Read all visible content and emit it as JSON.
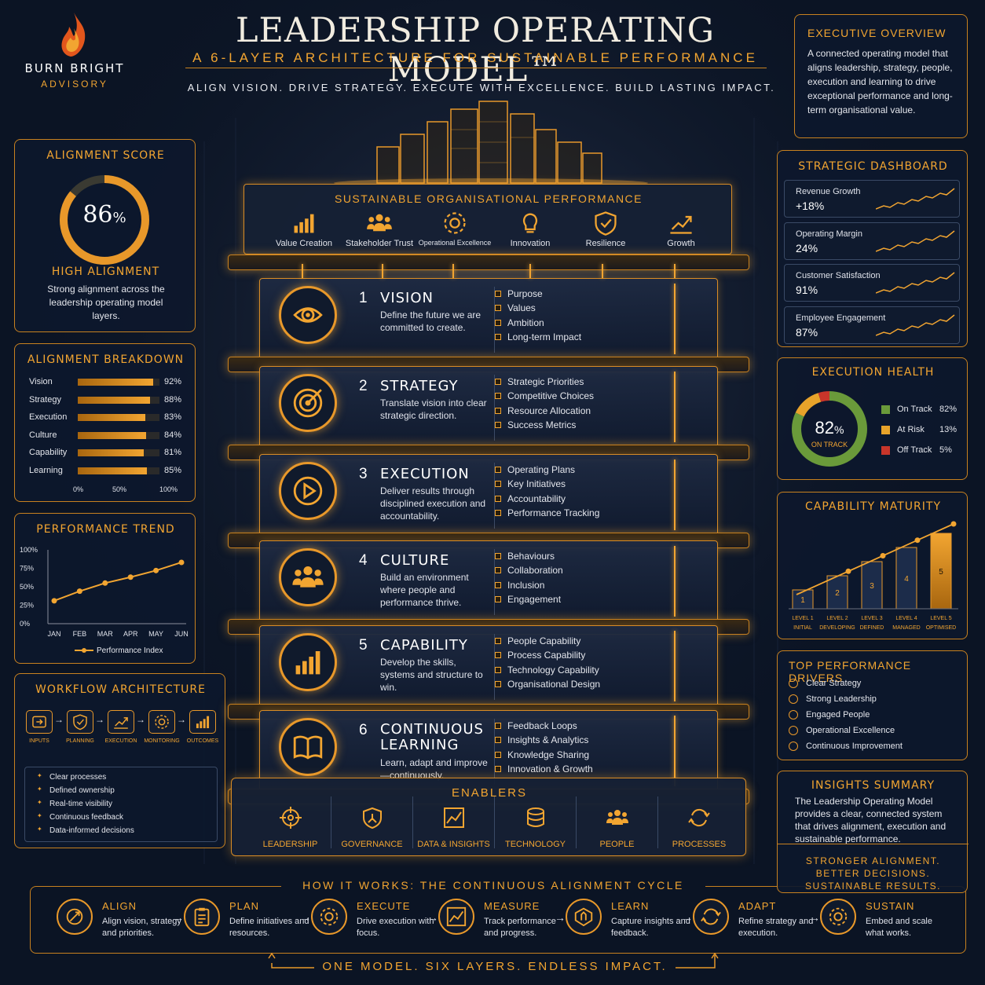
{
  "brand": {
    "name": "BURN BRIGHT",
    "sub": "ADVISORY"
  },
  "header": {
    "title": "LEADERSHIP OPERATING MODEL™",
    "subtitle": "A 6-LAYER ARCHITECTURE FOR SUSTAINABLE PERFORMANCE",
    "tagline": "ALIGN VISION. DRIVE STRATEGY. EXECUTE WITH EXCELLENCE. BUILD LASTING IMPACT."
  },
  "overview": {
    "title": "EXECUTIVE OVERVIEW",
    "text": "A connected operating model that aligns leadership, strategy, people, execution and learning to drive exceptional performance and long-term organisational value."
  },
  "alignment_score": {
    "title": "ALIGNMENT SCORE",
    "value": "86",
    "unit": "%",
    "fraction": 0.86,
    "status": "HIGH ALIGNMENT",
    "text": "Strong alignment across the leadership operating model layers."
  },
  "alignment_breakdown": {
    "title": "ALIGNMENT BREAKDOWN",
    "rows": [
      {
        "label": "Vision",
        "value": "92%",
        "pct": 92
      },
      {
        "label": "Strategy",
        "value": "88%",
        "pct": 88
      },
      {
        "label": "Execution",
        "value": "83%",
        "pct": 83
      },
      {
        "label": "Culture",
        "value": "84%",
        "pct": 84
      },
      {
        "label": "Capability",
        "value": "81%",
        "pct": 81
      },
      {
        "label": "Learning",
        "value": "85%",
        "pct": 85
      }
    ],
    "axis": [
      "0%",
      "50%",
      "100%"
    ]
  },
  "performance_trend": {
    "title": "PERFORMANCE TREND",
    "legend": "Performance Index"
  },
  "chart_data": {
    "type": "line",
    "categories": [
      "JAN",
      "FEB",
      "MAR",
      "APR",
      "MAY",
      "JUN"
    ],
    "series": [
      {
        "name": "Performance Index",
        "values": [
          31,
          44,
          55,
          63,
          72,
          83
        ]
      }
    ],
    "ylim": [
      0,
      100
    ],
    "yticks": [
      "0%",
      "25%",
      "50%",
      "75%",
      "100%"
    ]
  },
  "workflow": {
    "title": "WORKFLOW ARCHITECTURE",
    "steps": [
      "INPUTS",
      "PLANNING",
      "EXECUTION",
      "MONITORING",
      "OUTCOMES"
    ],
    "items": [
      "Clear processes",
      "Defined ownership",
      "Real-time visibility",
      "Continuous feedback",
      "Data-informed decisions"
    ]
  },
  "top_panel": {
    "title": "SUSTAINABLE ORGANISATIONAL PERFORMANCE",
    "items": [
      "Value Creation",
      "Stakeholder Trust",
      "Operational Excellence",
      "Innovation",
      "Resilience",
      "Growth"
    ]
  },
  "layers": [
    {
      "num": "1",
      "name": "VISION",
      "desc": "Define the future we are committed to create.",
      "items": [
        "Purpose",
        "Values",
        "Ambition",
        "Long-term Impact"
      ]
    },
    {
      "num": "2",
      "name": "STRATEGY",
      "desc": "Translate vision into clear strategic direction.",
      "items": [
        "Strategic Priorities",
        "Competitive Choices",
        "Resource Allocation",
        "Success Metrics"
      ]
    },
    {
      "num": "3",
      "name": "EXECUTION",
      "desc": "Deliver results through disciplined execution and accountability.",
      "items": [
        "Operating Plans",
        "Key Initiatives",
        "Accountability",
        "Performance Tracking"
      ]
    },
    {
      "num": "4",
      "name": "CULTURE",
      "desc": "Build an environment where people and performance thrive.",
      "items": [
        "Behaviours",
        "Collaboration",
        "Inclusion",
        "Engagement"
      ]
    },
    {
      "num": "5",
      "name": "CAPABILITY",
      "desc": "Develop the skills, systems and structure to win.",
      "items": [
        "People Capability",
        "Process Capability",
        "Technology Capability",
        "Organisational Design"
      ]
    },
    {
      "num": "6",
      "name": "CONTINUOUS LEARNING",
      "desc": "Learn, adapt and improve—continuously.",
      "items": [
        "Feedback Loops",
        "Insights & Analytics",
        "Knowledge Sharing",
        "Innovation & Growth"
      ]
    }
  ],
  "enablers": {
    "title": "ENABLERS",
    "items": [
      "LEADERSHIP",
      "GOVERNANCE",
      "DATA & INSIGHTS",
      "TECHNOLOGY",
      "PEOPLE",
      "PROCESSES"
    ]
  },
  "cycle": {
    "title": "HOW IT WORKS: THE CONTINUOUS ALIGNMENT CYCLE",
    "steps": [
      {
        "name": "ALIGN",
        "desc": "Align vision, strategy and priorities."
      },
      {
        "name": "PLAN",
        "desc": "Define initiatives and resources."
      },
      {
        "name": "EXECUTE",
        "desc": "Drive execution with focus."
      },
      {
        "name": "MEASURE",
        "desc": "Track performance and progress."
      },
      {
        "name": "LEARN",
        "desc": "Capture insights and feedback."
      },
      {
        "name": "ADAPT",
        "desc": "Refine strategy and execution."
      },
      {
        "name": "SUSTAIN",
        "desc": "Embed and scale what works."
      }
    ],
    "footer": "ONE MODEL. SIX LAYERS. ENDLESS IMPACT."
  },
  "dashboard": {
    "title": "STRATEGIC DASHBOARD",
    "cards": [
      {
        "label": "Revenue Growth",
        "value": "+18%"
      },
      {
        "label": "Operating Margin",
        "value": "24%"
      },
      {
        "label": "Customer Satisfaction",
        "value": "91%"
      },
      {
        "label": "Employee Engagement",
        "value": "87%"
      }
    ]
  },
  "execution_health": {
    "title": "EXECUTION HEALTH",
    "value": "82",
    "unit": "%",
    "sub": "ON TRACK",
    "legend": [
      {
        "label": "On Track",
        "value": "82%",
        "pct": 82,
        "color": "#6a9a3a"
      },
      {
        "label": "At Risk",
        "value": "13%",
        "pct": 13,
        "color": "#e8a32a"
      },
      {
        "label": "Off Track",
        "value": "5%",
        "pct": 5,
        "color": "#c8352a"
      }
    ]
  },
  "capability_maturity": {
    "title": "CAPABILITY MATURITY",
    "levels": [
      {
        "num": "1",
        "l1": "LEVEL 1",
        "l2": "INITIAL",
        "level": 1
      },
      {
        "num": "2",
        "l1": "LEVEL 2",
        "l2": "DEVELOPING",
        "level": 2
      },
      {
        "num": "3",
        "l1": "LEVEL 3",
        "l2": "DEFINED",
        "level": 3
      },
      {
        "num": "4",
        "l1": "LEVEL 4",
        "l2": "MANAGED",
        "level": 4
      },
      {
        "num": "5",
        "l1": "LEVEL 5",
        "l2": "OPTIMISED",
        "level": 5
      }
    ]
  },
  "drivers": {
    "title": "TOP PERFORMANCE DRIVERS",
    "items": [
      "Clear Strategy",
      "Strong Leadership",
      "Engaged People",
      "Operational Excellence",
      "Continuous Improvement"
    ]
  },
  "insights": {
    "title": "INSIGHTS SUMMARY",
    "text": "The Leadership Operating Model provides a clear, connected system that drives alignment, execution and sustainable performance.",
    "lines": [
      "STRONGER ALIGNMENT.",
      "BETTER DECISIONS.",
      "SUSTAINABLE RESULTS."
    ]
  }
}
